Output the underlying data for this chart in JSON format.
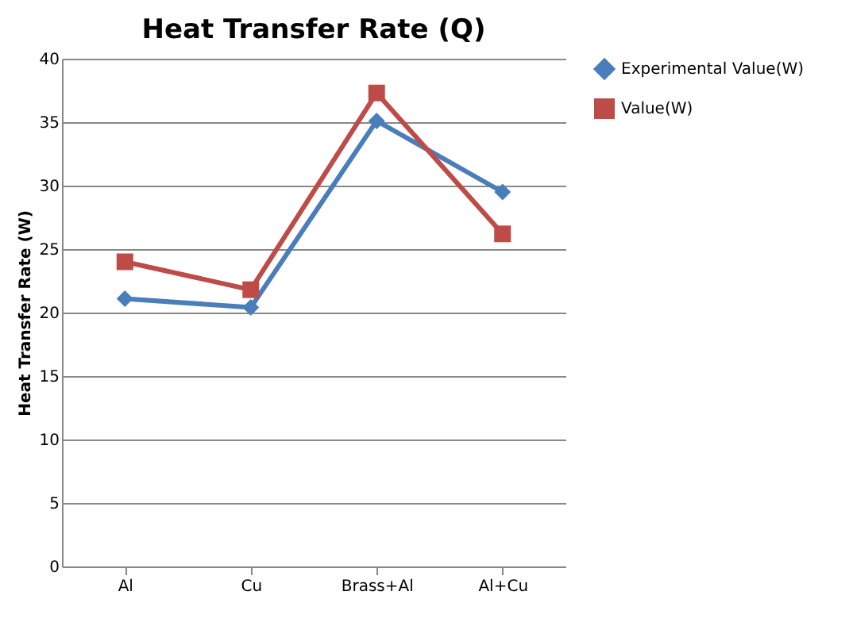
{
  "chart_data": {
    "type": "line",
    "title": "Heat Transfer Rate (Q)",
    "ylabel": "Heat Transfer Rate (W)",
    "categories": [
      "Al",
      "Cu",
      "Brass+Al",
      "Al+Cu"
    ],
    "series": [
      {
        "name": "Experimental Value(W)",
        "color": "#4a7ebb",
        "marker": "diamond",
        "values": [
          21.1,
          20.4,
          35.1,
          29.5
        ]
      },
      {
        "name": "Value(W)",
        "color": "#be4b48",
        "marker": "square",
        "values": [
          24.0,
          21.8,
          37.3,
          26.2
        ]
      }
    ],
    "ylim": [
      0,
      40
    ],
    "yticks": [
      0,
      5,
      10,
      15,
      20,
      25,
      30,
      35,
      40
    ],
    "grid": "y",
    "legend": "right"
  }
}
